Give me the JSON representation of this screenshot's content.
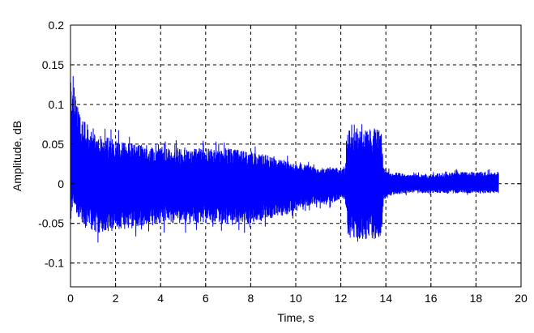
{
  "chart_data": {
    "type": "line",
    "title": "",
    "xlabel": "Time, s",
    "ylabel": "Amplitude, dB",
    "xlim": [
      0,
      20
    ],
    "ylim": [
      -0.13,
      0.2
    ],
    "xticks": [
      0,
      2,
      4,
      6,
      8,
      10,
      12,
      14,
      16,
      18,
      20
    ],
    "yticks": [
      -0.1,
      -0.05,
      0,
      0.05,
      0.1,
      0.15,
      0.2
    ],
    "xtick_labels": [
      "0",
      "2",
      "4",
      "6",
      "8",
      "10",
      "12",
      "14",
      "16",
      "18",
      "20"
    ],
    "ytick_labels": [
      "-0.1",
      "-0.05",
      "0",
      "0.05",
      "0.1",
      "0.15",
      "0.2"
    ],
    "grid": true,
    "grid_style": "dashed",
    "line_color": "#0000ff",
    "series": [
      {
        "envelope": {
          "x": [
            0,
            0.05,
            0.1,
            0.2,
            0.3,
            0.5,
            0.8,
            1.0,
            1.5,
            2.0,
            3.0,
            4.0,
            5.0,
            6.0,
            7.0,
            8.0,
            9.0,
            9.5,
            10.0,
            10.5,
            11.0,
            11.5,
            12.0,
            12.2,
            12.3,
            12.8,
            13.5,
            13.8,
            13.9,
            14.2,
            15.0,
            16.0,
            17.0,
            18.0,
            19.0
          ],
          "upper": [
            0.17,
            0.15,
            0.14,
            0.12,
            0.1,
            0.085,
            0.07,
            0.065,
            0.06,
            0.055,
            0.05,
            0.045,
            0.045,
            0.045,
            0.045,
            0.04,
            0.035,
            0.03,
            0.025,
            0.025,
            0.02,
            0.02,
            0.02,
            0.02,
            0.07,
            0.07,
            0.07,
            0.07,
            0.02,
            0.015,
            0.012,
            0.012,
            0.015,
            0.015,
            0.015
          ],
          "lower": [
            -0.06,
            -0.03,
            -0.02,
            -0.03,
            -0.04,
            -0.05,
            -0.055,
            -0.06,
            -0.065,
            -0.06,
            -0.055,
            -0.05,
            -0.05,
            -0.05,
            -0.05,
            -0.05,
            -0.045,
            -0.04,
            -0.035,
            -0.03,
            -0.025,
            -0.025,
            -0.02,
            -0.02,
            -0.065,
            -0.07,
            -0.07,
            -0.07,
            -0.02,
            -0.015,
            -0.012,
            -0.012,
            -0.012,
            -0.012,
            -0.012
          ]
        }
      }
    ]
  }
}
